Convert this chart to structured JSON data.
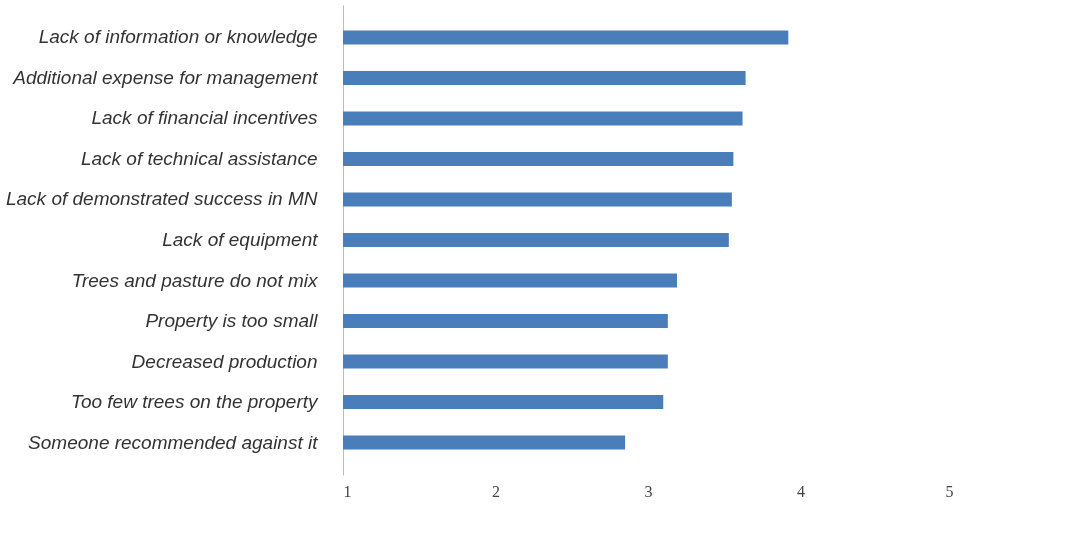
{
  "chart_data": {
    "type": "bar",
    "orientation": "horizontal",
    "categories": [
      "Lack of information or knowledge",
      "Additional expense for management",
      "Lack of financial incentives",
      "Lack of technical assistance",
      "Lack of demonstrated success in MN",
      "Lack of equipment",
      "Trees and pasture do not mix",
      "Property is too small",
      "Decreased production",
      "Too few trees on the property",
      "Someone recommended against it"
    ],
    "values": [
      3.92,
      3.64,
      3.62,
      3.56,
      3.55,
      3.53,
      3.19,
      3.13,
      3.13,
      3.1,
      2.85
    ],
    "color": "#4a7ebb",
    "xlim": [
      1,
      5
    ],
    "xticks": [
      1,
      2,
      3,
      4,
      5
    ],
    "grid": false
  }
}
